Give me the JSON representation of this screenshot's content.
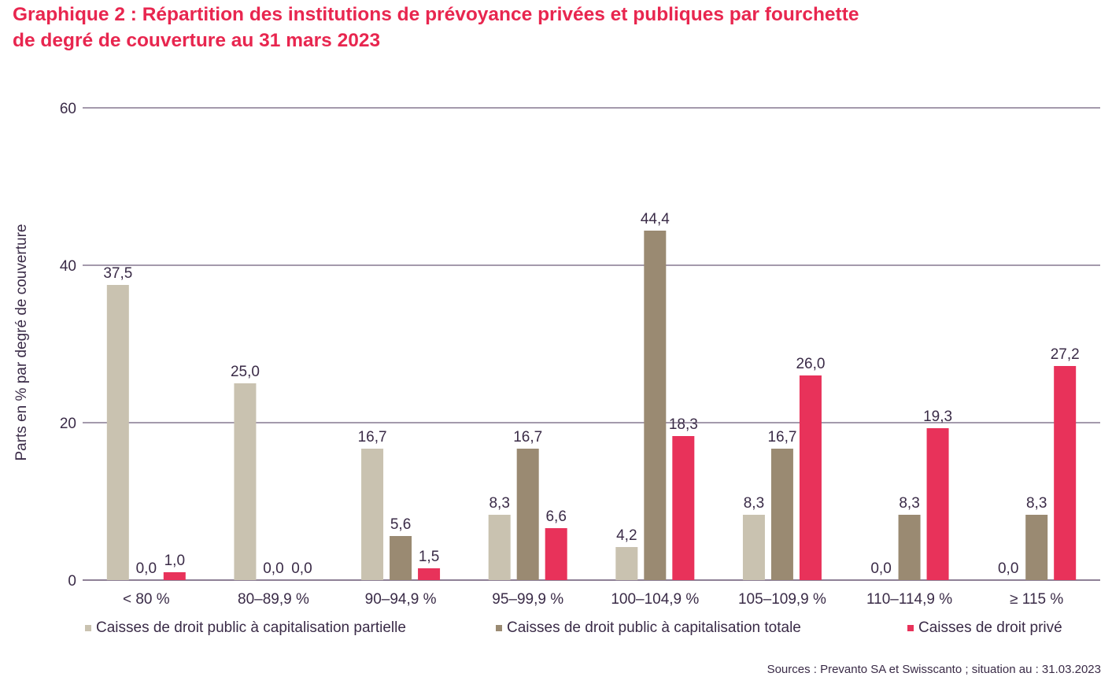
{
  "title": {
    "line1": "Graphique 2 : Répartition des institutions de prévoyance privées et publiques par fourchette",
    "line2": "de degré de couverture au 31 mars 2023"
  },
  "source": "Sources : Prevanto SA et Swisscanto ; situation au : 31.03.2023",
  "chart_data": {
    "type": "bar",
    "title": "Graphique 2 : Répartition des institutions de prévoyance privées et publiques par fourchette de degré de couverture au 31 mars 2023",
    "xlabel": "",
    "ylabel": "Parts en % par degré de couverture",
    "ylim": [
      0,
      60
    ],
    "yticks": [
      0,
      20,
      40,
      60
    ],
    "grid": true,
    "legend_position": "bottom",
    "categories": [
      "< 80 %",
      "80–89,9 %",
      "90–94,9 %",
      "95–99,9 %",
      "100–104,9 %",
      "105–109,9 %",
      "110–114,9 %",
      "≥ 115 %"
    ],
    "series": [
      {
        "name": "Caisses de droit public à capitalisation partielle",
        "color": "#c9c2b0",
        "values": [
          37.5,
          25.0,
          16.7,
          8.3,
          4.2,
          8.3,
          0.0,
          0.0
        ],
        "labels": [
          "37,5",
          "25,0",
          "16,7",
          "8,3",
          "4,2",
          "8,3",
          "",
          ""
        ]
      },
      {
        "name": "Caisses de droit public à capitalisation totale",
        "color": "#9a8a72",
        "values": [
          0.0,
          0.0,
          5.6,
          16.7,
          44.4,
          16.7,
          8.3,
          8.3
        ],
        "labels": [
          "0,0",
          "0,0",
          "5,6",
          "16,7",
          "44,4",
          "16,7",
          "8,3",
          "8,3"
        ]
      },
      {
        "name": "Caisses de droit privé",
        "color": "#e8325a",
        "values": [
          1.0,
          0.0,
          1.5,
          6.6,
          18.3,
          26.0,
          19.3,
          27.2
        ],
        "labels": [
          "1,0",
          "0,0",
          "1,5",
          "6,6",
          "18,3",
          "26,0",
          "19,3",
          "27,2"
        ]
      }
    ],
    "extra_labels": [
      {
        "category_index": 6,
        "text": "0,0"
      },
      {
        "category_index": 7,
        "text": "0,0"
      }
    ]
  }
}
